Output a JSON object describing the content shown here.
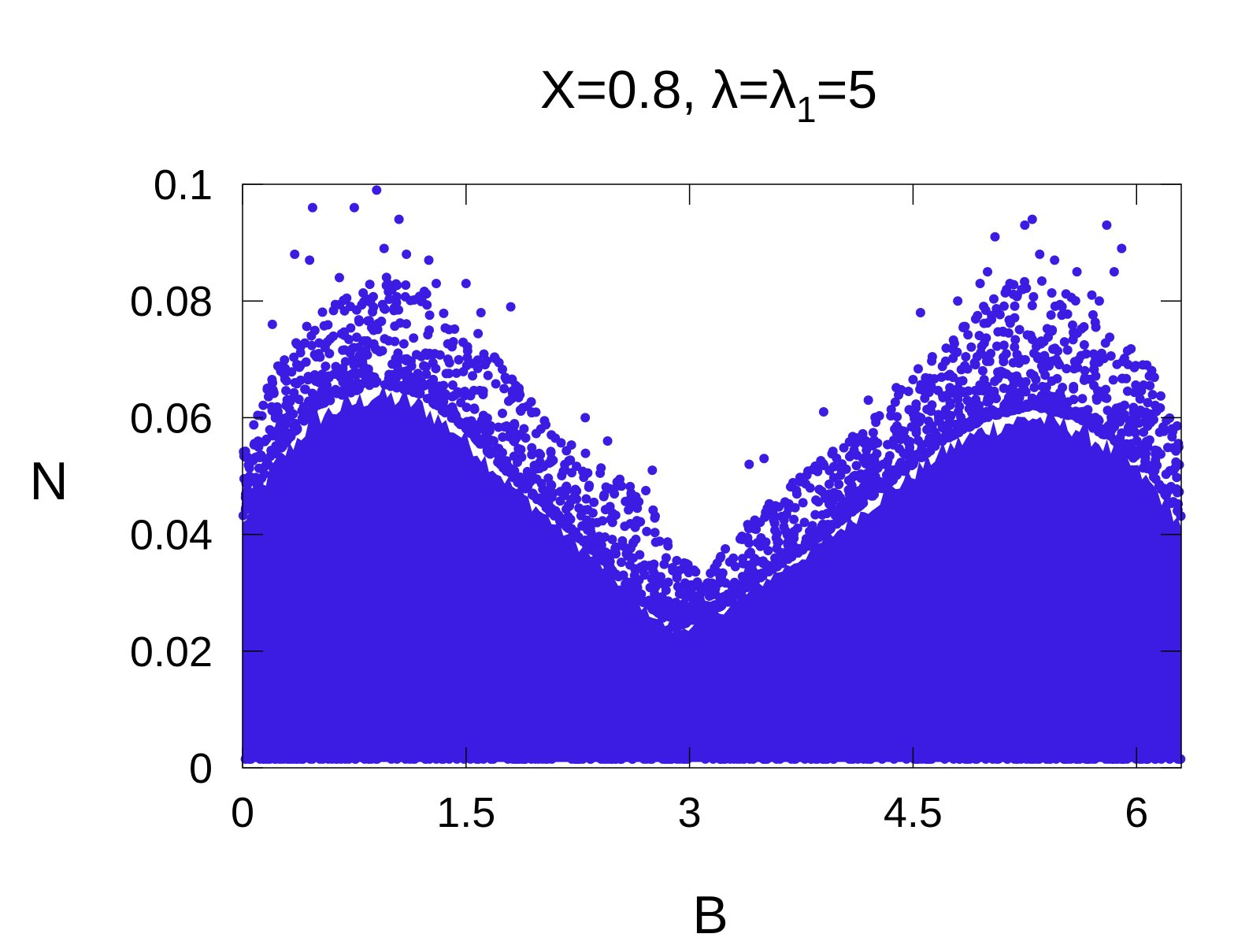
{
  "chart_data": {
    "type": "scatter",
    "title": {
      "before_sub": "X=0.8, λ=λ",
      "subscript": "1",
      "after_sub": "=5"
    },
    "xlabel": "B",
    "ylabel": "N",
    "xlim": [
      0,
      6.3
    ],
    "ylim": [
      0,
      0.1
    ],
    "x_ticks": [
      0,
      1.5,
      3,
      4.5,
      6
    ],
    "x_tick_labels": [
      "0",
      "1.5",
      "3",
      "4.5",
      "6"
    ],
    "y_ticks": [
      0,
      0.02,
      0.04,
      0.06,
      0.08,
      0.1
    ],
    "y_tick_labels": [
      "0",
      "0.02",
      "0.04",
      "0.06",
      "0.08",
      "0.1"
    ],
    "grid": false,
    "legend": "none",
    "marker_color": "#3c1be3",
    "envelope": {
      "description_points_x": [
        0,
        0.2,
        0.5,
        0.9,
        1.2,
        1.5,
        1.8,
        2.1,
        2.4,
        2.7,
        2.9,
        3.1,
        3.3,
        3.5,
        3.8,
        4.1,
        4.4,
        4.7,
        5.0,
        5.3,
        5.6,
        5.9,
        6.1,
        6.3
      ],
      "dense_upper_N": [
        0.043,
        0.053,
        0.062,
        0.066,
        0.064,
        0.058,
        0.05,
        0.043,
        0.036,
        0.028,
        0.024,
        0.026,
        0.029,
        0.033,
        0.038,
        0.044,
        0.05,
        0.056,
        0.06,
        0.062,
        0.06,
        0.055,
        0.05,
        0.043
      ],
      "sparse_upper_N": [
        0.055,
        0.068,
        0.078,
        0.085,
        0.082,
        0.077,
        0.068,
        0.058,
        0.052,
        0.048,
        0.038,
        0.032,
        0.04,
        0.045,
        0.052,
        0.058,
        0.066,
        0.073,
        0.08,
        0.085,
        0.08,
        0.074,
        0.07,
        0.058
      ]
    },
    "outliers": [
      {
        "x": 0.47,
        "y": 0.096
      },
      {
        "x": 0.75,
        "y": 0.096
      },
      {
        "x": 0.9,
        "y": 0.099
      },
      {
        "x": 1.05,
        "y": 0.094
      },
      {
        "x": 0.35,
        "y": 0.088
      },
      {
        "x": 0.45,
        "y": 0.087
      },
      {
        "x": 0.95,
        "y": 0.089
      },
      {
        "x": 1.1,
        "y": 0.088
      },
      {
        "x": 1.25,
        "y": 0.087
      },
      {
        "x": 1.3,
        "y": 0.083
      },
      {
        "x": 1.5,
        "y": 0.083
      },
      {
        "x": 0.2,
        "y": 0.076
      },
      {
        "x": 0.65,
        "y": 0.084
      },
      {
        "x": 1.6,
        "y": 0.078
      },
      {
        "x": 1.8,
        "y": 0.079
      },
      {
        "x": 2.3,
        "y": 0.06
      },
      {
        "x": 2.45,
        "y": 0.056
      },
      {
        "x": 2.75,
        "y": 0.051
      },
      {
        "x": 3.4,
        "y": 0.052
      },
      {
        "x": 3.5,
        "y": 0.053
      },
      {
        "x": 3.9,
        "y": 0.061
      },
      {
        "x": 4.2,
        "y": 0.063
      },
      {
        "x": 4.55,
        "y": 0.078
      },
      {
        "x": 4.8,
        "y": 0.08
      },
      {
        "x": 5.05,
        "y": 0.091
      },
      {
        "x": 5.25,
        "y": 0.093
      },
      {
        "x": 5.3,
        "y": 0.094
      },
      {
        "x": 5.35,
        "y": 0.088
      },
      {
        "x": 5.45,
        "y": 0.087
      },
      {
        "x": 5.6,
        "y": 0.085
      },
      {
        "x": 5.8,
        "y": 0.093
      },
      {
        "x": 5.9,
        "y": 0.089
      },
      {
        "x": 5.85,
        "y": 0.085
      },
      {
        "x": 5.0,
        "y": 0.085
      },
      {
        "x": 5.15,
        "y": 0.083
      },
      {
        "x": 5.7,
        "y": 0.081
      },
      {
        "x": 5.75,
        "y": 0.08
      },
      {
        "x": 4.95,
        "y": 0.083
      },
      {
        "x": 5.2,
        "y": 0.081
      }
    ]
  }
}
